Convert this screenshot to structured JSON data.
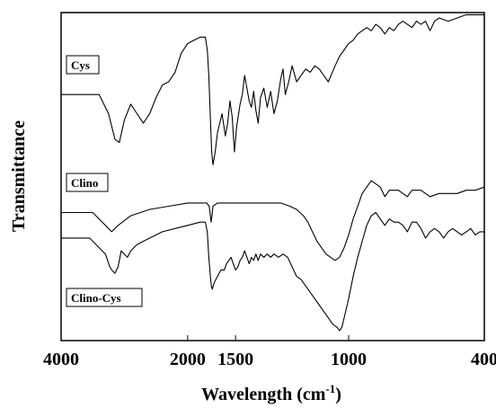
{
  "chart_data": {
    "type": "line",
    "xlabel": "Wavelength (cm",
    "xlabel_sup": "-1",
    "xlabel_end": ")",
    "ylabel": "Transmittance",
    "xlim": [
      4000,
      400
    ],
    "xticks": [
      {
        "value": 4000,
        "label": "4000"
      },
      {
        "value": 2000,
        "label": "2000"
      },
      {
        "value": 1500,
        "label": "1500"
      },
      {
        "value": 1000,
        "label": "1000"
      },
      {
        "value": 400,
        "label": "400"
      }
    ],
    "x_axis_note": "axis breaks between 2000 and 1500",
    "ylim": [
      0,
      100
    ],
    "grid": false,
    "series": [
      {
        "name": "Cys",
        "points": [
          [
            4000,
            76
          ],
          [
            3400,
            76
          ],
          [
            3250,
            70
          ],
          [
            3150,
            62
          ],
          [
            3080,
            61
          ],
          [
            3000,
            68
          ],
          [
            2900,
            73
          ],
          [
            2800,
            70
          ],
          [
            2700,
            67
          ],
          [
            2600,
            70
          ],
          [
            2500,
            75
          ],
          [
            2400,
            79
          ],
          [
            2300,
            80
          ],
          [
            2200,
            83
          ],
          [
            2100,
            89
          ],
          [
            2000,
            92
          ],
          [
            1900,
            93
          ],
          [
            1800,
            94
          ],
          [
            1750,
            94
          ],
          [
            1720,
            94
          ],
          [
            1690,
            90
          ],
          [
            1665,
            82
          ],
          [
            1640,
            68
          ],
          [
            1620,
            58
          ],
          [
            1600,
            54
          ],
          [
            1590,
            58
          ],
          [
            1580,
            64
          ],
          [
            1560,
            70
          ],
          [
            1545,
            63
          ],
          [
            1535,
            67
          ],
          [
            1525,
            74
          ],
          [
            1515,
            69
          ],
          [
            1505,
            58
          ],
          [
            1495,
            66
          ],
          [
            1480,
            73
          ],
          [
            1470,
            76
          ],
          [
            1460,
            82
          ],
          [
            1450,
            78
          ],
          [
            1440,
            74
          ],
          [
            1430,
            72
          ],
          [
            1420,
            77
          ],
          [
            1410,
            71
          ],
          [
            1400,
            67
          ],
          [
            1390,
            75
          ],
          [
            1375,
            78
          ],
          [
            1360,
            72
          ],
          [
            1345,
            77
          ],
          [
            1330,
            70
          ],
          [
            1315,
            74
          ],
          [
            1300,
            81
          ],
          [
            1290,
            84
          ],
          [
            1280,
            76
          ],
          [
            1265,
            80
          ],
          [
            1250,
            85
          ],
          [
            1230,
            80
          ],
          [
            1210,
            82
          ],
          [
            1190,
            84
          ],
          [
            1170,
            83
          ],
          [
            1150,
            85
          ],
          [
            1130,
            84
          ],
          [
            1110,
            82
          ],
          [
            1090,
            80
          ],
          [
            1060,
            85
          ],
          [
            1040,
            88
          ],
          [
            1020,
            90
          ],
          [
            1000,
            92
          ],
          [
            980,
            93
          ],
          [
            960,
            95
          ],
          [
            940,
            96
          ],
          [
            920,
            97
          ],
          [
            900,
            96
          ],
          [
            880,
            98
          ],
          [
            860,
            97
          ],
          [
            840,
            95
          ],
          [
            820,
            97
          ],
          [
            800,
            96
          ],
          [
            780,
            98
          ],
          [
            760,
            99
          ],
          [
            740,
            98
          ],
          [
            720,
            97
          ],
          [
            700,
            99
          ],
          [
            680,
            98
          ],
          [
            660,
            99
          ],
          [
            640,
            96
          ],
          [
            620,
            99
          ],
          [
            600,
            100
          ],
          [
            560,
            99
          ],
          [
            520,
            100
          ],
          [
            480,
            101
          ],
          [
            440,
            101
          ],
          [
            400,
            101
          ]
        ]
      },
      {
        "name": "Clino",
        "points": [
          [
            4000,
            39
          ],
          [
            3500,
            39
          ],
          [
            3300,
            35
          ],
          [
            3200,
            33
          ],
          [
            3100,
            35
          ],
          [
            2900,
            38
          ],
          [
            2600,
            40
          ],
          [
            2300,
            41
          ],
          [
            2000,
            42
          ],
          [
            1800,
            42
          ],
          [
            1700,
            42
          ],
          [
            1660,
            41
          ],
          [
            1640,
            38
          ],
          [
            1630,
            36
          ],
          [
            1615,
            38
          ],
          [
            1600,
            41
          ],
          [
            1580,
            42
          ],
          [
            1540,
            42
          ],
          [
            1500,
            42
          ],
          [
            1440,
            42
          ],
          [
            1400,
            42
          ],
          [
            1350,
            42
          ],
          [
            1300,
            42
          ],
          [
            1260,
            41
          ],
          [
            1230,
            40
          ],
          [
            1200,
            38
          ],
          [
            1180,
            36
          ],
          [
            1160,
            33
          ],
          [
            1140,
            30
          ],
          [
            1120,
            28
          ],
          [
            1100,
            26
          ],
          [
            1080,
            25
          ],
          [
            1060,
            24
          ],
          [
            1040,
            25
          ],
          [
            1020,
            28
          ],
          [
            1000,
            32
          ],
          [
            980,
            37
          ],
          [
            960,
            41
          ],
          [
            940,
            45
          ],
          [
            920,
            47
          ],
          [
            900,
            49
          ],
          [
            880,
            48
          ],
          [
            860,
            47
          ],
          [
            840,
            44
          ],
          [
            820,
            46
          ],
          [
            800,
            46
          ],
          [
            780,
            46
          ],
          [
            760,
            45
          ],
          [
            740,
            44
          ],
          [
            720,
            46
          ],
          [
            700,
            46
          ],
          [
            680,
            46
          ],
          [
            660,
            45
          ],
          [
            640,
            44
          ],
          [
            600,
            45
          ],
          [
            560,
            45
          ],
          [
            520,
            45
          ],
          [
            480,
            46
          ],
          [
            440,
            46
          ],
          [
            400,
            47
          ]
        ]
      },
      {
        "name": "Clino-Cys",
        "points": [
          [
            4000,
            31
          ],
          [
            3550,
            31
          ],
          [
            3400,
            28
          ],
          [
            3300,
            26
          ],
          [
            3230,
            22
          ],
          [
            3200,
            21
          ],
          [
            3150,
            20
          ],
          [
            3100,
            22
          ],
          [
            3050,
            27
          ],
          [
            3000,
            26
          ],
          [
            2950,
            25
          ],
          [
            2900,
            27
          ],
          [
            2800,
            29
          ],
          [
            2600,
            31
          ],
          [
            2400,
            33
          ],
          [
            2200,
            34
          ],
          [
            2000,
            35
          ],
          [
            1800,
            36
          ],
          [
            1750,
            36
          ],
          [
            1720,
            36
          ],
          [
            1690,
            33
          ],
          [
            1665,
            25
          ],
          [
            1645,
            20
          ],
          [
            1625,
            16
          ],
          [
            1610,
            15
          ],
          [
            1595,
            17
          ],
          [
            1580,
            19
          ],
          [
            1565,
            21
          ],
          [
            1550,
            21
          ],
          [
            1540,
            23
          ],
          [
            1530,
            24
          ],
          [
            1520,
            25
          ],
          [
            1510,
            23
          ],
          [
            1500,
            21
          ],
          [
            1490,
            22
          ],
          [
            1480,
            24
          ],
          [
            1470,
            25
          ],
          [
            1460,
            27
          ],
          [
            1450,
            25
          ],
          [
            1440,
            23
          ],
          [
            1430,
            25
          ],
          [
            1420,
            24
          ],
          [
            1410,
            26
          ],
          [
            1400,
            24
          ],
          [
            1390,
            26
          ],
          [
            1375,
            25
          ],
          [
            1360,
            26
          ],
          [
            1345,
            25
          ],
          [
            1330,
            26
          ],
          [
            1310,
            25
          ],
          [
            1290,
            26
          ],
          [
            1270,
            25
          ],
          [
            1250,
            22
          ],
          [
            1230,
            19
          ],
          [
            1210,
            18
          ],
          [
            1190,
            16
          ],
          [
            1170,
            14
          ],
          [
            1150,
            12
          ],
          [
            1130,
            10
          ],
          [
            1110,
            8
          ],
          [
            1090,
            6
          ],
          [
            1070,
            4
          ],
          [
            1050,
            3
          ],
          [
            1040,
            2
          ],
          [
            1030,
            3
          ],
          [
            1020,
            6
          ],
          [
            1000,
            12
          ],
          [
            980,
            19
          ],
          [
            960,
            25
          ],
          [
            940,
            30
          ],
          [
            920,
            35
          ],
          [
            900,
            38
          ],
          [
            880,
            39
          ],
          [
            860,
            37
          ],
          [
            840,
            35
          ],
          [
            820,
            37
          ],
          [
            800,
            36
          ],
          [
            780,
            36
          ],
          [
            760,
            35
          ],
          [
            740,
            33
          ],
          [
            720,
            36
          ],
          [
            700,
            36
          ],
          [
            680,
            34
          ],
          [
            660,
            31
          ],
          [
            640,
            33
          ],
          [
            620,
            34
          ],
          [
            600,
            33
          ],
          [
            580,
            31
          ],
          [
            560,
            33
          ],
          [
            540,
            34
          ],
          [
            520,
            33
          ],
          [
            500,
            32
          ],
          [
            480,
            33
          ],
          [
            460,
            34
          ],
          [
            440,
            32
          ],
          [
            420,
            33
          ],
          [
            400,
            33
          ]
        ]
      }
    ]
  }
}
